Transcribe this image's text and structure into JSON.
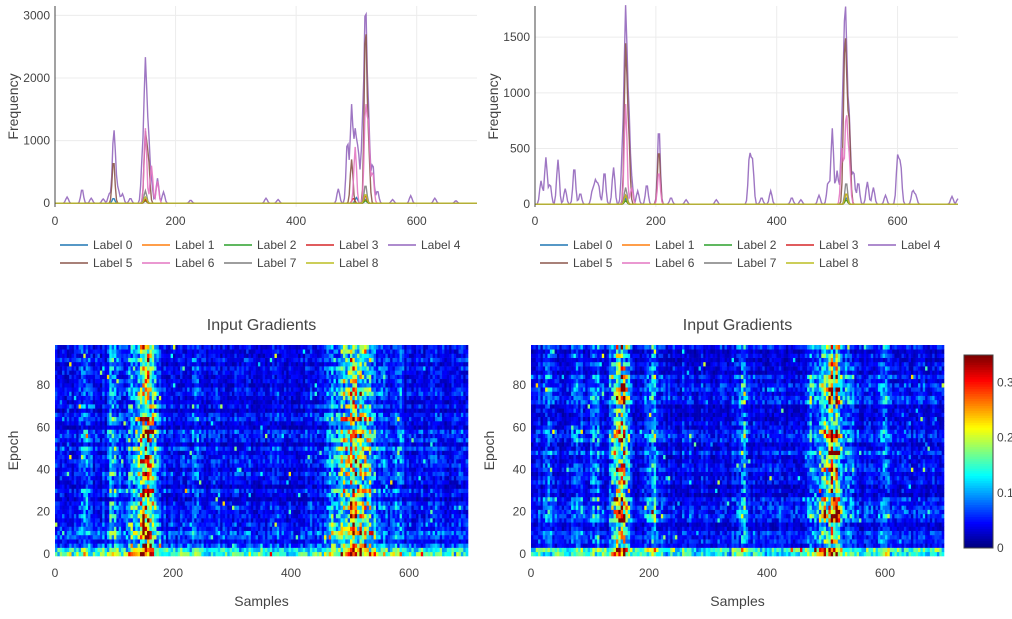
{
  "chart_data": [
    {
      "type": "line",
      "title": "",
      "xlabel": "",
      "ylabel": "Frequency",
      "xlim": [
        0,
        700
      ],
      "ylim": [
        -60,
        3150
      ],
      "xticks": [
        0,
        200,
        400,
        600
      ],
      "yticks": [
        0,
        1000,
        2000,
        3000
      ],
      "grid": true,
      "legend_position": "bottom",
      "series": [
        {
          "name": "Label 0",
          "color": "#1f77b4",
          "peaks": [
            [
              97,
              80
            ],
            [
              150,
              60
            ],
            [
              500,
              90
            ],
            [
              515,
              70
            ]
          ]
        },
        {
          "name": "Label 1",
          "color": "#ff7f0e",
          "peaks": [
            [
              150,
              40
            ],
            [
              515,
              50
            ]
          ]
        },
        {
          "name": "Label 2",
          "color": "#2ca02c",
          "peaks": [
            [
              150,
              40
            ],
            [
              515,
              40
            ]
          ]
        },
        {
          "name": "Label 3",
          "color": "#d62728",
          "peaks": [
            [
              150,
              60
            ],
            [
              495,
              80
            ],
            [
              515,
              120
            ]
          ]
        },
        {
          "name": "Label 4",
          "color": "#9467bd",
          "peaks": [
            [
              20,
              100
            ],
            [
              45,
              230
            ],
            [
              60,
              80
            ],
            [
              80,
              70
            ],
            [
              90,
              150
            ],
            [
              97,
              960
            ],
            [
              100,
              450
            ],
            [
              105,
              200
            ],
            [
              112,
              150
            ],
            [
              125,
              80
            ],
            [
              145,
              700
            ],
            [
              150,
              2200
            ],
            [
              155,
              1050
            ],
            [
              160,
              320
            ],
            [
              170,
              400
            ],
            [
              180,
              180
            ],
            [
              225,
              50
            ],
            [
              350,
              80
            ],
            [
              370,
              60
            ],
            [
              470,
              230
            ],
            [
              485,
              1000
            ],
            [
              492,
              1550
            ],
            [
              498,
              1100
            ],
            [
              503,
              800
            ],
            [
              510,
              1150
            ],
            [
              515,
              3030
            ],
            [
              520,
              1350
            ],
            [
              527,
              640
            ],
            [
              535,
              200
            ],
            [
              560,
              60
            ],
            [
              590,
              120
            ],
            [
              630,
              80
            ],
            [
              665,
              40
            ]
          ]
        },
        {
          "name": "Label 5",
          "color": "#8c564b",
          "peaks": [
            [
              97,
              700
            ],
            [
              150,
              1100
            ],
            [
              155,
              700
            ],
            [
              492,
              700
            ],
            [
              515,
              2800
            ],
            [
              520,
              900
            ]
          ]
        },
        {
          "name": "Label 6",
          "color": "#e377c2",
          "peaks": [
            [
              150,
              1200
            ],
            [
              160,
              600
            ],
            [
              170,
              350
            ],
            [
              498,
              900
            ],
            [
              515,
              1500
            ],
            [
              520,
              1200
            ],
            [
              527,
              500
            ]
          ]
        },
        {
          "name": "Label 7",
          "color": "#7f7f7f",
          "peaks": [
            [
              150,
              200
            ],
            [
              515,
              300
            ]
          ]
        },
        {
          "name": "Label 8",
          "color": "#bcbd22",
          "peaks": [
            [
              150,
              100
            ],
            [
              515,
              150
            ]
          ]
        }
      ]
    },
    {
      "type": "line",
      "title": "",
      "xlabel": "",
      "ylabel": "Frequency",
      "xlim": [
        0,
        700
      ],
      "ylim": [
        -25,
        1780
      ],
      "xticks": [
        0,
        200,
        400,
        600
      ],
      "yticks": [
        0,
        500,
        1000,
        1500
      ],
      "grid": true,
      "legend_position": "bottom",
      "series": [
        {
          "name": "Label 0",
          "color": "#1f77b4",
          "peaks": [
            [
              150,
              50
            ],
            [
              515,
              60
            ]
          ]
        },
        {
          "name": "Label 1",
          "color": "#ff7f0e",
          "peaks": [
            [
              150,
              30
            ],
            [
              515,
              40
            ]
          ]
        },
        {
          "name": "Label 2",
          "color": "#2ca02c",
          "peaks": [
            [
              150,
              30
            ],
            [
              515,
              40
            ]
          ]
        },
        {
          "name": "Label 3",
          "color": "#d62728",
          "peaks": [
            [
              150,
              80
            ],
            [
              515,
              100
            ]
          ]
        },
        {
          "name": "Label 4",
          "color": "#9467bd",
          "peaks": [
            [
              10,
              210
            ],
            [
              18,
              420
            ],
            [
              25,
              180
            ],
            [
              38,
              400
            ],
            [
              50,
              140
            ],
            [
              65,
              340
            ],
            [
              75,
              100
            ],
            [
              95,
              120
            ],
            [
              100,
              200
            ],
            [
              105,
              170
            ],
            [
              115,
              300
            ],
            [
              130,
              330
            ],
            [
              145,
              500
            ],
            [
              150,
              1690
            ],
            [
              155,
              800
            ],
            [
              160,
              200
            ],
            [
              170,
              120
            ],
            [
              185,
              180
            ],
            [
              205,
              700
            ],
            [
              225,
              60
            ],
            [
              250,
              40
            ],
            [
              300,
              40
            ],
            [
              355,
              430
            ],
            [
              360,
              380
            ],
            [
              375,
              60
            ],
            [
              390,
              120
            ],
            [
              425,
              60
            ],
            [
              440,
              40
            ],
            [
              470,
              80
            ],
            [
              485,
              200
            ],
            [
              492,
              680
            ],
            [
              500,
              300
            ],
            [
              508,
              600
            ],
            [
              512,
              1080
            ],
            [
              515,
              1140
            ],
            [
              520,
              750
            ],
            [
              527,
              300
            ],
            [
              535,
              200
            ],
            [
              550,
              200
            ],
            [
              560,
              150
            ],
            [
              580,
              80
            ],
            [
              600,
              420
            ],
            [
              605,
              350
            ],
            [
              625,
              120
            ],
            [
              630,
              80
            ],
            [
              690,
              70
            ],
            [
              700,
              50
            ]
          ]
        },
        {
          "name": "Label 5",
          "color": "#8c564b",
          "peaks": [
            [
              150,
              1400
            ],
            [
              155,
              600
            ],
            [
              205,
              500
            ],
            [
              512,
              1000
            ],
            [
              515,
              900
            ],
            [
              520,
              700
            ]
          ]
        },
        {
          "name": "Label 6",
          "color": "#e377c2",
          "peaks": [
            [
              150,
              900
            ],
            [
              160,
              150
            ],
            [
              205,
              300
            ],
            [
              508,
              500
            ],
            [
              515,
              800
            ],
            [
              520,
              400
            ]
          ]
        },
        {
          "name": "Label 7",
          "color": "#7f7f7f",
          "peaks": [
            [
              150,
              150
            ],
            [
              515,
              200
            ]
          ]
        },
        {
          "name": "Label 8",
          "color": "#bcbd22",
          "peaks": [
            [
              150,
              80
            ],
            [
              515,
              100
            ]
          ]
        }
      ]
    },
    {
      "type": "heatmap",
      "title": "Input Gradients",
      "xlabel": "Samples",
      "ylabel": "Epoch",
      "xlim": [
        0,
        700
      ],
      "ylim": [
        -1,
        99
      ],
      "xticks": [
        0,
        200,
        400,
        600
      ],
      "yticks": [
        0,
        20,
        40,
        60,
        80
      ],
      "colorscale": "jet",
      "zrange": [
        0,
        0.35
      ],
      "hot_bands": [
        [
          155,
          0.16
        ],
        [
          145,
          0.12
        ],
        [
          165,
          0.1
        ],
        [
          130,
          0.07
        ],
        [
          100,
          0.08
        ],
        [
          490,
          0.15
        ],
        [
          505,
          0.18
        ],
        [
          520,
          0.16
        ],
        [
          535,
          0.1
        ],
        [
          470,
          0.08
        ],
        [
          555,
          0.05
        ],
        [
          50,
          0.04
        ],
        [
          240,
          0.03
        ],
        [
          580,
          0.04
        ]
      ]
    },
    {
      "type": "heatmap",
      "title": "Input Gradients",
      "xlabel": "Samples",
      "ylabel": "Epoch",
      "xlim": [
        0,
        700
      ],
      "ylim": [
        -1,
        99
      ],
      "xticks": [
        0,
        200,
        400,
        600
      ],
      "yticks": [
        0,
        20,
        40,
        60,
        80
      ],
      "colorscale": "jet",
      "zrange": [
        0,
        0.35
      ],
      "colorbar_ticks": [
        0,
        0.1,
        0.2,
        0.3
      ],
      "hot_bands": [
        [
          150,
          0.15
        ],
        [
          160,
          0.12
        ],
        [
          140,
          0.08
        ],
        [
          205,
          0.08
        ],
        [
          110,
          0.06
        ],
        [
          80,
          0.05
        ],
        [
          495,
          0.13
        ],
        [
          510,
          0.17
        ],
        [
          520,
          0.13
        ],
        [
          475,
          0.07
        ],
        [
          540,
          0.06
        ],
        [
          360,
          0.06
        ],
        [
          600,
          0.05
        ],
        [
          30,
          0.04
        ]
      ]
    }
  ]
}
